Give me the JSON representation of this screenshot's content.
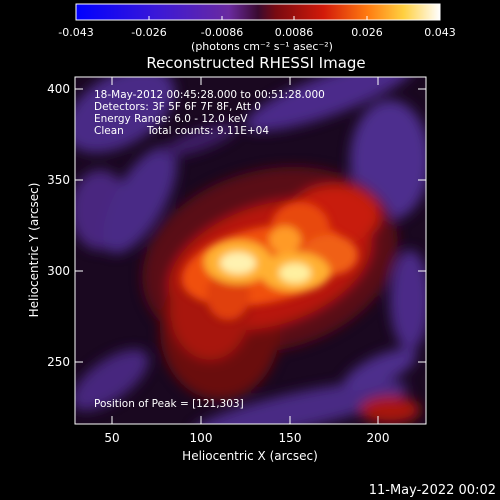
{
  "colorbar": {
    "ticks": [
      "-0.043",
      "-0.026",
      "-0.0086",
      "0.0086",
      "0.026",
      "0.043"
    ],
    "unit_label": "(photons cm⁻² s⁻¹ asec⁻²)"
  },
  "title": "Reconstructed RHESSI Image",
  "info": {
    "time_range": "18-May-2012 00:45:28.000 to 00:51:28.000",
    "detectors": "Detectors: 3F 5F 6F 7F 8F, Att 0",
    "energy": "Energy Range: 6.0 - 12.0 keV",
    "clean_label": "Clean",
    "counts": "Total counts: 9.11E+04"
  },
  "peak": "Position of Peak = [121,303]",
  "axes": {
    "xlabel": "Heliocentric X (arcsec)",
    "ylabel": "Heliocentric Y (arcsec)",
    "x_ticks": [
      "50",
      "100",
      "150",
      "200"
    ],
    "y_ticks": [
      "400",
      "350",
      "300",
      "250"
    ]
  },
  "footer_date": "11-May-2022 00:02",
  "colors": {
    "axis": "#ffffff",
    "background": "#000000"
  }
}
